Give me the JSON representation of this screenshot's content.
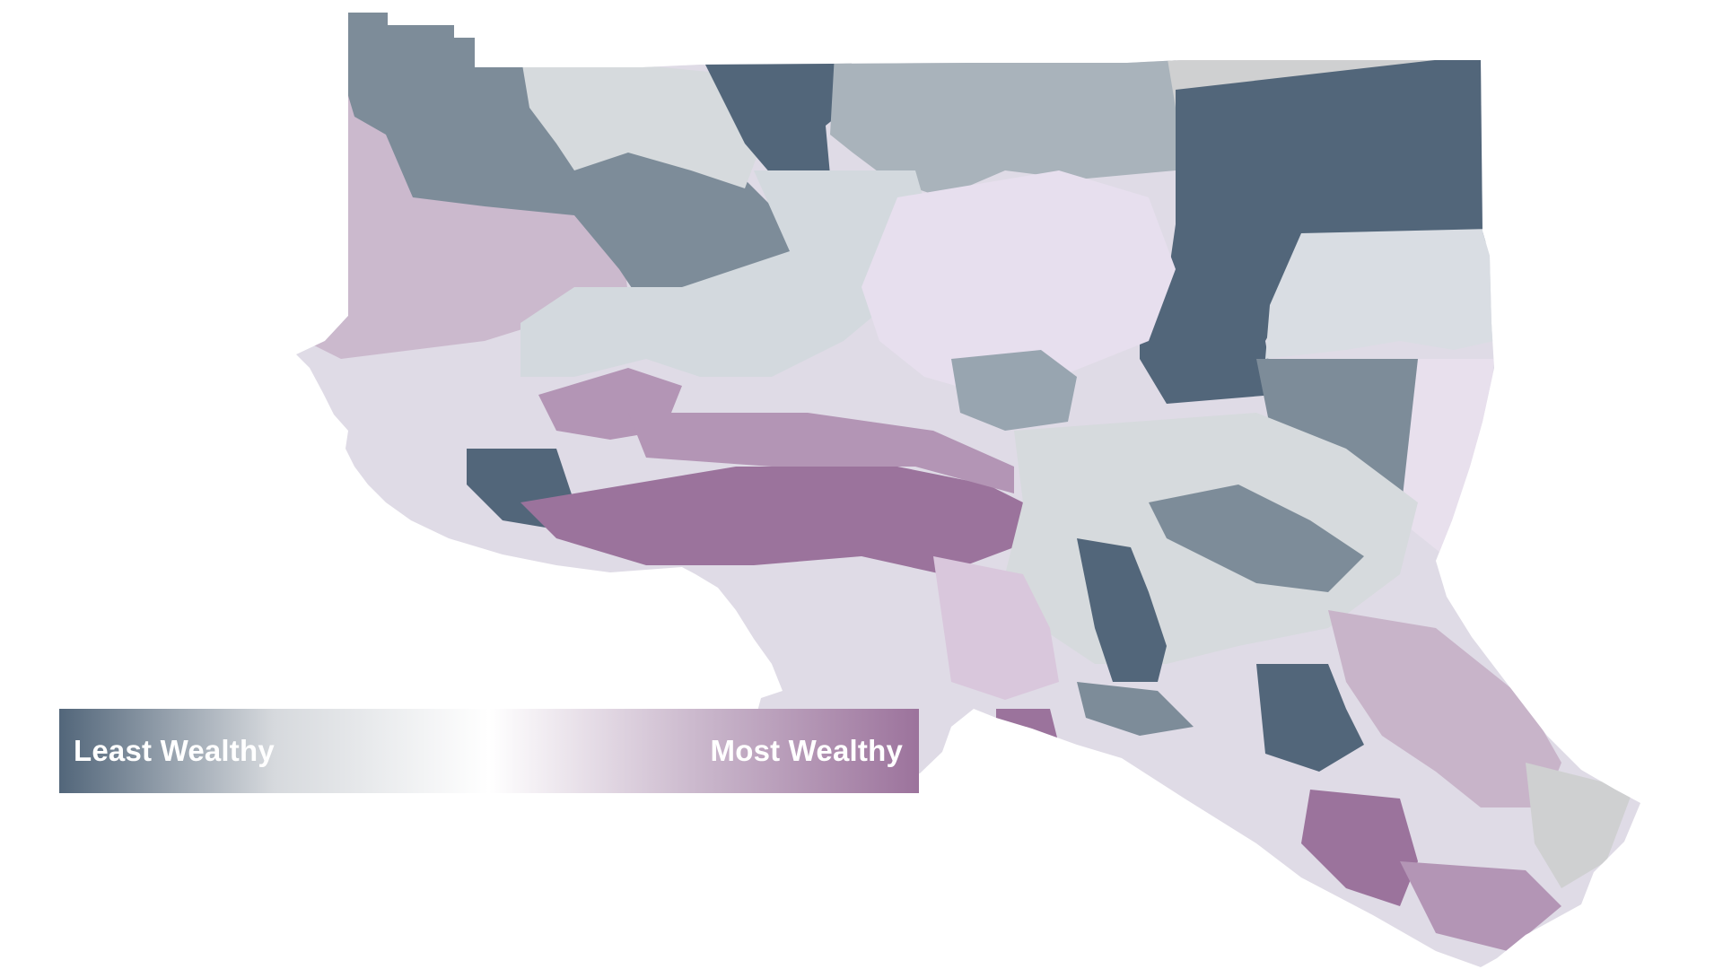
{
  "legend": {
    "low_label": "Least Wealthy",
    "high_label": "Most Wealthy",
    "gradient_colors": [
      "#52667a",
      "#d6d9dd",
      "#ffffff",
      "#c9b6cb",
      "#9c739c"
    ]
  },
  "palette": {
    "least_wealthy": "#52667a",
    "low": "#7d8c99",
    "lower_mid": "#a9b3bb",
    "mid_gray": "#d6dadd",
    "neutral": "#cfd0d1",
    "light_lilac": "#e8e0ed",
    "mid_lilac": "#c8b4c9",
    "high": "#b395b5",
    "most_wealthy": "#9b739c"
  }
}
